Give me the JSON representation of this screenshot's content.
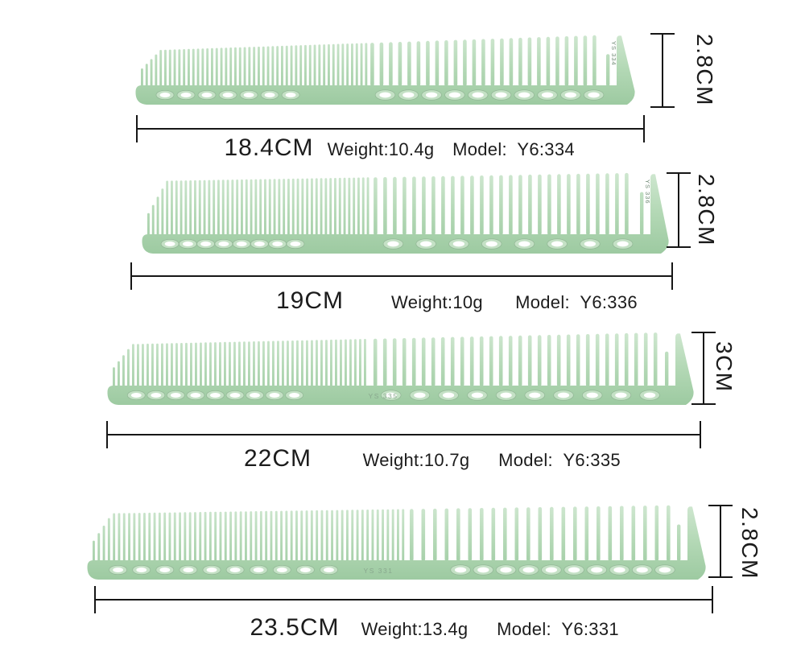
{
  "colors": {
    "background": "#ffffff",
    "comb_top": "#cfe7d0",
    "comb_mid": "#b3d8b5",
    "comb_bottom": "#9dcaa1",
    "hole_ring": "#c4e1c5",
    "hole_center": "#ffffff",
    "dimension_line": "#161616",
    "label_text": "#1c1c1c"
  },
  "combs": [
    {
      "length_label": "18.4CM",
      "weight_label": "Weight:10.4g",
      "model_label": "Model:  Y6:334",
      "height_label": "2.8CM",
      "length_cm": "18.4",
      "height_cm": "2.8",
      "weight_g": "10.4",
      "model": "Y6:334",
      "print": "YS 334"
    },
    {
      "length_label": "19CM",
      "weight_label": "Weight:10g",
      "model_label": "Model:  Y6:336",
      "height_label": "2.8CM",
      "length_cm": "19",
      "height_cm": "2.8",
      "weight_g": "10",
      "model": "Y6:336",
      "print": "YS 336"
    },
    {
      "length_label": "22CM",
      "weight_label": "Weight:10.7g",
      "model_label": "Model:  Y6:335",
      "height_label": "3CM",
      "length_cm": "22",
      "height_cm": "3",
      "weight_g": "10.7",
      "model": "Y6:335",
      "print": "YS 335"
    },
    {
      "length_label": "23.5CM",
      "weight_label": "Weight:13.4g",
      "model_label": "Model:  Y6:331",
      "height_label": "2.8CM",
      "length_cm": "23.5",
      "height_cm": "2.8",
      "weight_g": "13.4",
      "model": "Y6:331",
      "print": "YS 331"
    }
  ]
}
